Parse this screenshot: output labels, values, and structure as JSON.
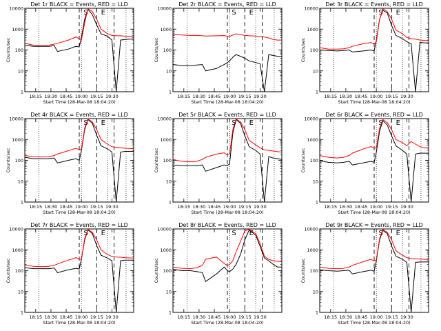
{
  "figure": {
    "type": "line",
    "yscale": "log",
    "ylim": [
      1,
      10000
    ],
    "ytick_labels": [
      "1",
      "10",
      "100",
      "1000",
      "10000"
    ],
    "ylabel": "Counts/sec",
    "xlabel": "Start Time (28-Mar-08 18:04:20)",
    "xtick_labels": [
      "18:15",
      "18:30",
      "18:45",
      "19:00",
      "19:15",
      "19:30"
    ],
    "series_colors": {
      "events": "#000000",
      "lld": "#ff0000"
    }
  },
  "chart_data": [
    {
      "type": "line",
      "title": "Det 1r BLACK = Events, RED = LLD",
      "xlabel": "Start Time (28-Mar-08 18:04:20)",
      "ylabel": "Counts/sec",
      "markers": [
        "S",
        "E"
      ],
      "x": [
        0,
        0.08,
        0.16,
        0.22,
        0.27,
        0.3,
        0.4,
        0.47,
        0.5,
        0.52,
        0.55,
        0.58,
        0.62,
        0.66,
        0.7,
        0.76,
        0.8,
        0.84,
        0.88,
        0.92,
        0.96,
        1
      ],
      "events": [
        170,
        150,
        150,
        150,
        160,
        85,
        110,
        150,
        140,
        400,
        3000,
        9000,
        5000,
        1600,
        600,
        450,
        300,
        0.8,
        300,
        320,
        330,
        330
      ],
      "lld": [
        210,
        170,
        160,
        170,
        190,
        210,
        300,
        420,
        350,
        300,
        2000,
        9500,
        7000,
        3000,
        1000,
        600,
        500,
        480,
        480,
        460,
        450,
        440
      ]
    },
    {
      "type": "line",
      "title": "Det 2r BLACK = Events, RED = LLD",
      "xlabel": "Start Time (28-Mar-08 18:04:20)",
      "ylabel": "Counts/sec",
      "markers": [
        "S",
        "E"
      ],
      "x": [
        0,
        0.08,
        0.16,
        0.22,
        0.27,
        0.3,
        0.4,
        0.47,
        0.5,
        0.52,
        0.55,
        0.58,
        0.62,
        0.66,
        0.7,
        0.76,
        0.8,
        0.84,
        0.88,
        0.92,
        0.96,
        1
      ],
      "events": [
        20,
        18,
        18,
        19,
        20,
        10,
        13,
        20,
        25,
        30,
        45,
        60,
        50,
        40,
        30,
        25,
        22,
        0.8,
        60,
        55,
        50,
        50
      ],
      "lld": [
        560,
        520,
        500,
        500,
        480,
        470,
        480,
        490,
        460,
        450,
        520,
        600,
        550,
        500,
        480,
        470,
        440,
        420,
        380,
        320,
        300,
        300
      ]
    },
    {
      "type": "line",
      "title": "Det 3r BLACK = Events, RED = LLD",
      "xlabel": "Start Time (28-Mar-08 18:04:20)",
      "ylabel": "Counts/sec",
      "markers": [
        "S",
        "E"
      ],
      "x": [
        0,
        0.08,
        0.16,
        0.22,
        0.27,
        0.3,
        0.4,
        0.47,
        0.5,
        0.52,
        0.55,
        0.58,
        0.62,
        0.66,
        0.7,
        0.76,
        0.8,
        0.84,
        0.88,
        0.92,
        0.96,
        1
      ],
      "events": [
        100,
        95,
        90,
        95,
        100,
        80,
        90,
        100,
        90,
        300,
        3000,
        8000,
        6000,
        1500,
        500,
        350,
        250,
        200,
        0.8,
        230,
        220,
        220
      ],
      "lld": [
        130,
        110,
        110,
        115,
        130,
        150,
        200,
        230,
        190,
        250,
        3000,
        9500,
        7000,
        3000,
        900,
        600,
        400,
        350,
        330,
        300,
        290,
        280
      ]
    },
    {
      "type": "line",
      "title": "Det 4r BLACK = Events, RED = LLD",
      "xlabel": "Start Time (28-Mar-08 18:04:20)",
      "ylabel": "Counts/sec",
      "markers": [
        "S",
        "E"
      ],
      "x": [
        0,
        0.08,
        0.16,
        0.22,
        0.27,
        0.3,
        0.4,
        0.47,
        0.5,
        0.52,
        0.55,
        0.58,
        0.62,
        0.66,
        0.7,
        0.76,
        0.8,
        0.84,
        0.88,
        0.92,
        0.96,
        1
      ],
      "events": [
        140,
        120,
        120,
        120,
        130,
        75,
        100,
        120,
        100,
        300,
        3000,
        9000,
        6000,
        1600,
        500,
        350,
        250,
        0.8,
        250,
        270,
        270,
        270
      ],
      "lld": [
        170,
        150,
        145,
        150,
        170,
        200,
        290,
        380,
        320,
        350,
        3500,
        9500,
        7000,
        3000,
        1000,
        600,
        450,
        420,
        400,
        380,
        370,
        360
      ]
    },
    {
      "type": "line",
      "title": "Det 5r BLACK = Events, RED = LLD",
      "xlabel": "Start Time (28-Mar-08 18:04:20)",
      "ylabel": "Counts/sec",
      "markers": [
        "S",
        "E"
      ],
      "x": [
        0,
        0.08,
        0.16,
        0.22,
        0.27,
        0.3,
        0.4,
        0.47,
        0.5,
        0.52,
        0.55,
        0.58,
        0.62,
        0.66,
        0.7,
        0.76,
        0.8,
        0.84,
        0.88,
        0.92,
        0.96,
        1
      ],
      "events": [
        60,
        55,
        55,
        55,
        60,
        30,
        45,
        60,
        55,
        70,
        2000,
        9000,
        6000,
        1500,
        450,
        300,
        200,
        0.8,
        150,
        130,
        120,
        110
      ],
      "lld": [
        110,
        90,
        85,
        90,
        110,
        140,
        200,
        230,
        180,
        200,
        3000,
        9500,
        7000,
        3000,
        900,
        550,
        400,
        320,
        300,
        280,
        260,
        250
      ]
    },
    {
      "type": "line",
      "title": "Det 6r BLACK = Events, RED = LLD",
      "xlabel": "Start Time (28-Mar-08 18:04:20)",
      "ylabel": "Counts/sec",
      "markers": [
        "S",
        "E"
      ],
      "x": [
        0,
        0.08,
        0.16,
        0.22,
        0.27,
        0.3,
        0.4,
        0.47,
        0.5,
        0.52,
        0.55,
        0.58,
        0.62,
        0.66,
        0.7,
        0.76,
        0.8,
        0.84,
        0.88,
        0.92,
        0.96,
        1
      ],
      "events": [
        95,
        80,
        75,
        80,
        90,
        60,
        75,
        90,
        80,
        250,
        2500,
        8000,
        5000,
        1500,
        500,
        300,
        200,
        0.8,
        200,
        220,
        220,
        220
      ],
      "lld": [
        170,
        140,
        130,
        140,
        170,
        220,
        350,
        450,
        380,
        400,
        3500,
        9000,
        6500,
        3000,
        1000,
        700,
        500,
        800,
        600,
        450,
        400,
        380
      ]
    },
    {
      "type": "line",
      "title": "Det 7r BLACK = Events, RED = LLD",
      "xlabel": "Start Time (28-Mar-08 18:04:20)",
      "ylabel": "Counts/sec",
      "markers": [
        "S",
        "E"
      ],
      "x": [
        0,
        0.08,
        0.16,
        0.22,
        0.27,
        0.3,
        0.4,
        0.47,
        0.5,
        0.52,
        0.55,
        0.58,
        0.62,
        0.66,
        0.7,
        0.76,
        0.8,
        0.84,
        0.88,
        0.92,
        0.96,
        1
      ],
      "events": [
        140,
        125,
        125,
        125,
        135,
        80,
        110,
        130,
        120,
        350,
        3000,
        9000,
        6000,
        1600,
        550,
        400,
        300,
        0.8,
        300,
        320,
        320,
        320
      ],
      "lld": [
        190,
        160,
        155,
        160,
        180,
        210,
        320,
        420,
        350,
        350,
        3500,
        9500,
        7000,
        3000,
        1000,
        600,
        480,
        450,
        440,
        420,
        410,
        400
      ]
    },
    {
      "type": "line",
      "title": "Det 8r BLACK = Events, RED = LLD",
      "xlabel": "Start Time (28-Mar-08 18:04:20)",
      "ylabel": "Counts/sec",
      "markers": [
        "S",
        "E"
      ],
      "x": [
        0,
        0.08,
        0.16,
        0.22,
        0.27,
        0.3,
        0.4,
        0.47,
        0.5,
        0.52,
        0.55,
        0.58,
        0.62,
        0.66,
        0.7,
        0.76,
        0.8,
        0.84,
        0.88,
        0.92,
        0.96,
        1
      ],
      "events": [
        120,
        100,
        100,
        90,
        80,
        30,
        70,
        150,
        100,
        90,
        120,
        200,
        600,
        3000,
        9000,
        5000,
        1500,
        400,
        300,
        200,
        150,
        150
      ],
      "lld": [
        150,
        130,
        125,
        140,
        180,
        350,
        450,
        220,
        180,
        200,
        300,
        800,
        2500,
        8000,
        9500,
        6000,
        2000,
        500,
        350,
        300,
        280,
        270
      ]
    },
    {
      "type": "line",
      "title": "Det 9r BLACK = Events, RED = LLD",
      "xlabel": "Start Time (28-Mar-08 18:04:20)",
      "ylabel": "Counts/sec",
      "markers": [
        "S",
        "E"
      ],
      "x": [
        0,
        0.08,
        0.16,
        0.22,
        0.27,
        0.3,
        0.4,
        0.47,
        0.5,
        0.52,
        0.55,
        0.58,
        0.62,
        0.66,
        0.7,
        0.76,
        0.8,
        0.84,
        0.88,
        0.92,
        0.96,
        1
      ],
      "events": [
        110,
        100,
        95,
        100,
        105,
        70,
        90,
        105,
        95,
        300,
        3000,
        8500,
        6000,
        1500,
        500,
        350,
        250,
        0.8,
        250,
        260,
        260,
        260
      ],
      "lld": [
        150,
        130,
        125,
        130,
        150,
        180,
        270,
        350,
        290,
        320,
        3500,
        9500,
        7000,
        3000,
        900,
        550,
        420,
        380,
        370,
        360,
        350,
        340
      ]
    }
  ]
}
